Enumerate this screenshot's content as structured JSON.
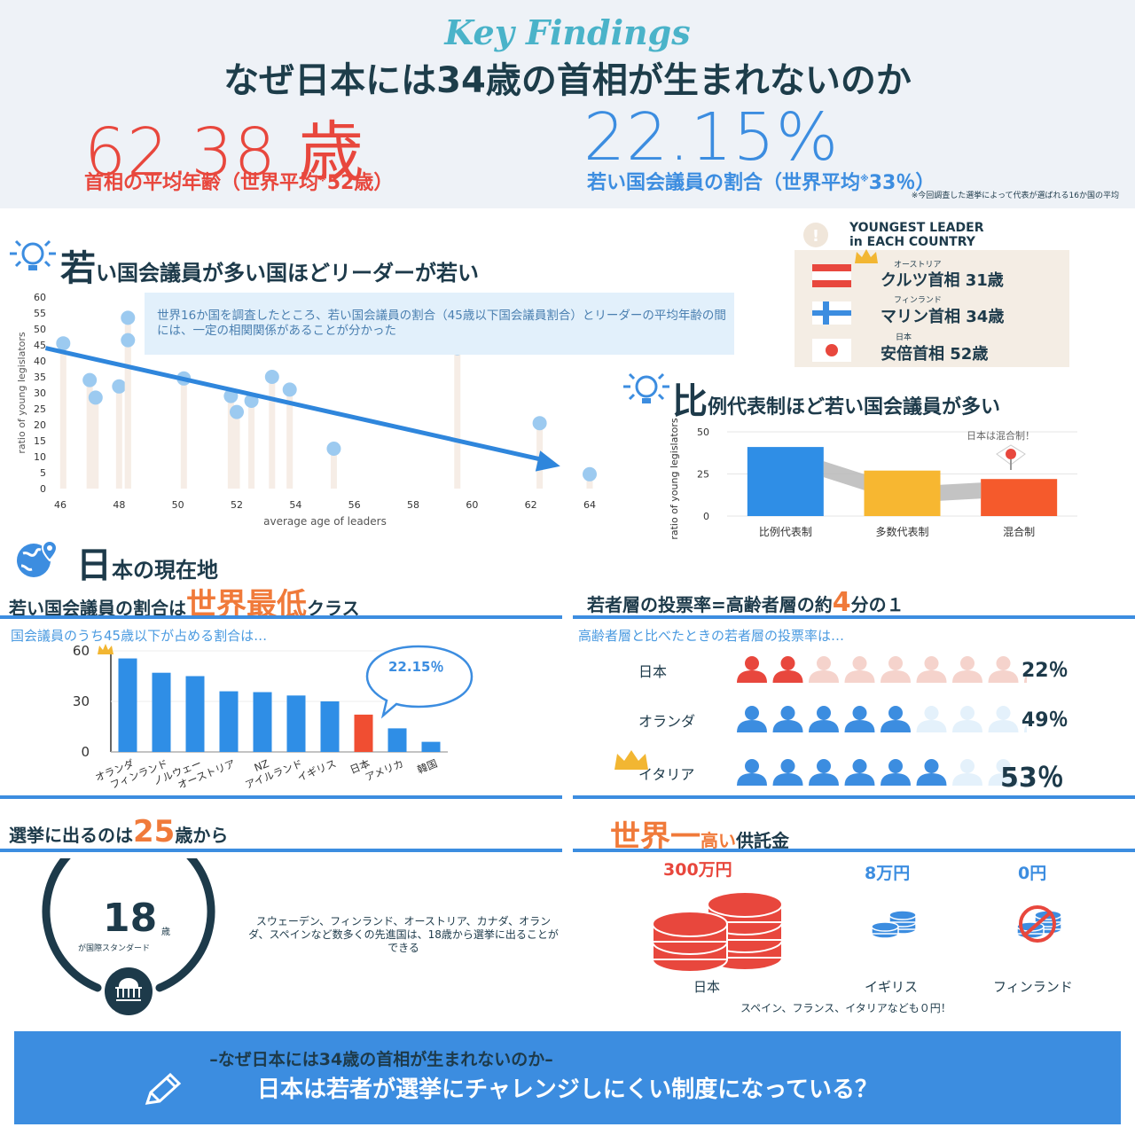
{
  "header": {
    "kicker": "Key Findings",
    "title": "なぜ日本には34歳の首相が生まれないのか",
    "stat_age": "62.38 歳",
    "stat_age_caption": "首相の平均年齢（世界平均",
    "stat_age_caption_tail": "52歳）",
    "stat_ratio": "22.15%",
    "stat_ratio_caption": "若い国会議員の割合（世界平均",
    "stat_ratio_caption_tail": "33％）",
    "asterisk": "※",
    "footnote": "※今回調査した選挙によって代表が選ばれる16か国の平均"
  },
  "section1": {
    "title_big": "若",
    "title_rest": "い国会議員が多い国ほどリーダーが若い",
    "note": "世界16か国を調査したところ、若い国会議員の割合（45歳以下国会議員割合）とリーダーの平均年齢の間には、一定の相関関係があることが分かった"
  },
  "leaders": {
    "title_line1": "YOUNGEST LEADER",
    "title_line2": "in EACH COUNTRY",
    "items": [
      {
        "country": "オーストリア",
        "name": "クルツ首相 31歳"
      },
      {
        "country": "フィンランド",
        "name": "マリン首相 34歳"
      },
      {
        "country": "日本",
        "name": "安倍首相 52歳"
      }
    ]
  },
  "section2": {
    "title_big": "比",
    "title_rest": "例代表制ほど若い国会議員が多い",
    "annotation": "日本は混合制！"
  },
  "section3": {
    "title_big": "日",
    "title_rest": "本の現在地"
  },
  "panel_low": {
    "title_pre": "若い国会議員の割合は",
    "title_hl": "世界最低",
    "title_post": "クラス",
    "sub": "国会議員のうち45歳以下が占める割合は…",
    "bubble": "22.15％"
  },
  "panel_vote": {
    "title_pre": "若者層の投票率=高齢者層の約",
    "title_hl": "4",
    "title_post": "分の１",
    "sub": "高齢者層と比べたときの若者層の投票率は…",
    "rows": [
      {
        "country": "日本",
        "pct": "22％",
        "filled": 2,
        "color": "#e8473d",
        "faded": "#f5d3cc"
      },
      {
        "country": "オランダ",
        "pct": "49％",
        "filled": 5,
        "color": "#3c8de0",
        "faded": "#e4f1fb"
      },
      {
        "country": "イタリア",
        "pct": "53％",
        "filled": 6,
        "color": "#3c8de0",
        "faded": "#e4f1fb"
      }
    ]
  },
  "panel_age": {
    "title_pre": "選挙に出るのは",
    "title_hl": "25",
    "title_post": "歳から",
    "circle_num": "18",
    "circle_unit": "歳",
    "circle_caption": "が国際スタンダード",
    "text": "スウェーデン、フィンランド、オーストリア、カナダ、オランダ、スペインなど数多くの先進国は、18歳から選挙に出ることができる"
  },
  "panel_deposit": {
    "title_hl": "世界一",
    "title_mid": "高い",
    "title_post": "供託金",
    "items": [
      {
        "amount": "300万円",
        "country": "日本",
        "color": "#e8473d"
      },
      {
        "amount": "8万円",
        "country": "イギリス",
        "color": "#3c8de0"
      },
      {
        "amount": "0円",
        "country": "フィンランド",
        "color": "#3c8de0"
      }
    ],
    "note": "スペイン、フランス、イタリアなども０円！"
  },
  "banner": {
    "sub": "–なぜ日本には34歳の首相が生まれないのか–",
    "main": "日本は若者が選挙にチャレンジしにくい制度になっている？"
  },
  "chart_data": [
    {
      "type": "scatter",
      "title": "",
      "xlabel": "average age of leaders",
      "ylabel": "ratio of young legislators",
      "xlim": [
        46,
        64
      ],
      "ylim": [
        0,
        60
      ],
      "xticks": [
        46,
        48,
        50,
        52,
        54,
        56,
        58,
        60,
        62,
        64
      ],
      "yticks": [
        0,
        5,
        10,
        15,
        20,
        25,
        30,
        35,
        40,
        45,
        50,
        55,
        60
      ],
      "points": [
        {
          "x": 46.1,
          "y": 45.5
        },
        {
          "x": 47,
          "y": 34
        },
        {
          "x": 47.2,
          "y": 28.5
        },
        {
          "x": 48,
          "y": 32
        },
        {
          "x": 48.3,
          "y": 53.5
        },
        {
          "x": 48.3,
          "y": 46.5
        },
        {
          "x": 50.2,
          "y": 34.5
        },
        {
          "x": 51.8,
          "y": 29
        },
        {
          "x": 52,
          "y": 24
        },
        {
          "x": 52.5,
          "y": 27.5
        },
        {
          "x": 53.2,
          "y": 35
        },
        {
          "x": 53.8,
          "y": 31
        },
        {
          "x": 55.3,
          "y": 12.5
        },
        {
          "x": 59.5,
          "y": 44
        },
        {
          "x": 62.3,
          "y": 20.5
        },
        {
          "x": 64,
          "y": 4.5
        }
      ],
      "trend": {
        "x": [
          45.5,
          63
        ],
        "y": [
          44,
          7
        ]
      },
      "grid": false
    },
    {
      "type": "bar",
      "title": "",
      "ylabel": "ratio of young legislators",
      "categories": [
        "比例代表制",
        "多数代表制",
        "混合制"
      ],
      "values": [
        41,
        27,
        22
      ],
      "colors": [
        "#2f8ee6",
        "#f7b731",
        "#f55a2c"
      ],
      "yticks": [
        0,
        25,
        50
      ],
      "ylim": [
        0,
        50
      ]
    },
    {
      "type": "bar",
      "title": "",
      "categories": [
        "オランダ",
        "フィンランド",
        "ノルウェー",
        "オーストリア",
        "NZ",
        "アイルランド",
        "イギリス",
        "日本",
        "アメリカ",
        "韓国"
      ],
      "values": [
        55.5,
        47,
        45,
        36,
        35.5,
        33.5,
        30,
        22.15,
        14,
        6
      ],
      "highlight": "日本",
      "yticks": [
        0,
        30,
        60
      ],
      "ylim": [
        0,
        60
      ]
    }
  ],
  "colors": {
    "accent": "#3c8de0",
    "red": "#e8473d",
    "orange": "#f07a3a",
    "navy": "#1d3a4a",
    "header_bg": "#eef2f7"
  }
}
